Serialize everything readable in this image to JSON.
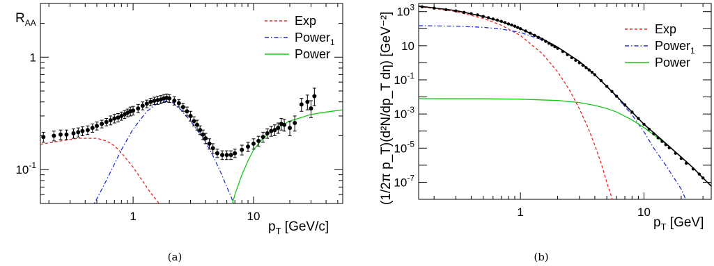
{
  "chart_data": [
    {
      "id": "a",
      "type": "line",
      "caption": "(a)",
      "xlabel": {
        "main": "p",
        "sub": "T",
        "rest": " [GeV/c]"
      },
      "ylabel": {
        "main": "R",
        "sub": "AA"
      },
      "xscale": "log",
      "yscale": "log",
      "xlim": [
        0.17,
        55
      ],
      "ylim": [
        0.05,
        3
      ],
      "x_tick_labels": [
        {
          "value": 1,
          "label": "1"
        },
        {
          "value": 10,
          "label": "10"
        }
      ],
      "y_tick_labels": [
        {
          "value": 0.1,
          "base": "10",
          "exp": "-1"
        },
        {
          "value": 1,
          "base": "1",
          "exp": ""
        }
      ],
      "legend_position": "top-right",
      "legend": [
        {
          "name": "Exp",
          "sub": "",
          "color": "#e8221d",
          "dash": "4 3"
        },
        {
          "name": "Power",
          "sub": "1",
          "color": "#1f2fd6",
          "dash": "6 3 1.5 3"
        },
        {
          "name": "Power",
          "sub": "",
          "color": "#18c618",
          "dash": ""
        }
      ],
      "series": [
        {
          "name": "Exp",
          "color": "#e8221d",
          "x": [
            0.17,
            0.25,
            0.35,
            0.5,
            0.6,
            0.7,
            0.8,
            1.0,
            1.2,
            1.4,
            1.6,
            1.7
          ],
          "y": [
            0.168,
            0.18,
            0.19,
            0.19,
            0.18,
            0.163,
            0.141,
            0.105,
            0.079,
            0.062,
            0.052,
            0.047
          ]
        },
        {
          "name": "Power_1",
          "color": "#1f2fd6",
          "x": [
            0.45,
            0.5,
            0.6,
            0.8,
            1.0,
            1.3,
            1.6,
            1.9,
            2.1,
            2.5,
            3.0,
            3.5,
            4.0,
            4.5,
            5.0,
            5.5,
            6.0,
            6.5,
            7.0
          ],
          "y": [
            0.045,
            0.055,
            0.08,
            0.15,
            0.23,
            0.33,
            0.39,
            0.41,
            0.4,
            0.34,
            0.27,
            0.215,
            0.175,
            0.14,
            0.11,
            0.088,
            0.07,
            0.058,
            0.046
          ]
        },
        {
          "name": "Power",
          "color": "#18c618",
          "x": [
            6.5,
            7.0,
            8.0,
            9.0,
            10,
            12,
            15,
            20,
            30,
            40,
            55
          ],
          "y": [
            0.045,
            0.06,
            0.09,
            0.12,
            0.15,
            0.19,
            0.23,
            0.27,
            0.31,
            0.325,
            0.34
          ]
        }
      ],
      "points": {
        "x": [
          0.18,
          0.22,
          0.25,
          0.28,
          0.32,
          0.35,
          0.38,
          0.42,
          0.46,
          0.5,
          0.55,
          0.6,
          0.65,
          0.7,
          0.75,
          0.8,
          0.85,
          0.9,
          0.95,
          1.0,
          1.1,
          1.2,
          1.3,
          1.4,
          1.5,
          1.6,
          1.7,
          1.8,
          1.9,
          2.0,
          2.2,
          2.4,
          2.6,
          2.8,
          3.0,
          3.2,
          3.4,
          3.6,
          3.8,
          4.0,
          4.3,
          4.6,
          5.0,
          5.5,
          6.0,
          6.5,
          7.0,
          8.0,
          9.0,
          10,
          11,
          12,
          13,
          14,
          15,
          16,
          17,
          18,
          20,
          22,
          25,
          28,
          30,
          32
        ],
        "y": [
          0.195,
          0.2,
          0.205,
          0.205,
          0.21,
          0.215,
          0.22,
          0.225,
          0.235,
          0.245,
          0.255,
          0.265,
          0.275,
          0.285,
          0.29,
          0.3,
          0.31,
          0.32,
          0.33,
          0.335,
          0.35,
          0.37,
          0.385,
          0.4,
          0.41,
          0.415,
          0.42,
          0.43,
          0.435,
          0.43,
          0.41,
          0.39,
          0.36,
          0.33,
          0.3,
          0.27,
          0.25,
          0.225,
          0.205,
          0.19,
          0.17,
          0.155,
          0.14,
          0.135,
          0.135,
          0.135,
          0.14,
          0.15,
          0.16,
          0.17,
          0.18,
          0.195,
          0.21,
          0.22,
          0.225,
          0.235,
          0.255,
          0.25,
          0.235,
          0.26,
          0.38,
          0.4,
          0.35,
          0.45
        ],
        "err": [
          0.02,
          0.02,
          0.02,
          0.02,
          0.02,
          0.02,
          0.02,
          0.02,
          0.02,
          0.02,
          0.02,
          0.02,
          0.025,
          0.025,
          0.025,
          0.025,
          0.025,
          0.025,
          0.03,
          0.03,
          0.03,
          0.03,
          0.03,
          0.03,
          0.03,
          0.035,
          0.035,
          0.035,
          0.035,
          0.035,
          0.035,
          0.03,
          0.03,
          0.03,
          0.03,
          0.025,
          0.025,
          0.02,
          0.02,
          0.02,
          0.018,
          0.015,
          0.012,
          0.012,
          0.012,
          0.012,
          0.012,
          0.015,
          0.015,
          0.018,
          0.018,
          0.02,
          0.02,
          0.022,
          0.025,
          0.025,
          0.03,
          0.03,
          0.035,
          0.04,
          0.05,
          0.06,
          0.06,
          0.08
        ]
      }
    },
    {
      "id": "b",
      "type": "line",
      "caption": "(b)",
      "xlabel": {
        "main": "p",
        "sub": "T",
        "rest": " [GeV]"
      },
      "ylabel": {
        "text": "(1/2π p_T)(d²N/dp_T dη) [GeV⁻²]"
      },
      "xscale": "log",
      "yscale": "log",
      "xlim": [
        0.15,
        35
      ],
      "ylim": [
        1e-08,
        3000
      ],
      "x_tick_labels": [
        {
          "value": 1,
          "label": "1"
        },
        {
          "value": 10,
          "label": "10"
        }
      ],
      "y_tick_labels": [
        {
          "value": 1000,
          "base": "10",
          "exp": "3"
        },
        {
          "value": 10,
          "base": "10",
          "exp": ""
        },
        {
          "value": 0.1,
          "base": "10",
          "exp": "-1"
        },
        {
          "value": 0.001,
          "base": "10",
          "exp": "-3"
        },
        {
          "value": 1e-05,
          "base": "10",
          "exp": "-5"
        },
        {
          "value": 1e-07,
          "base": "10",
          "exp": "-7"
        }
      ],
      "legend_position": "top-right",
      "legend": [
        {
          "name": "Exp",
          "sub": "",
          "color": "#e8221d",
          "dash": "4 3"
        },
        {
          "name": "Power",
          "sub": "1",
          "color": "#1f2fd6",
          "dash": "6 3 1.5 3"
        },
        {
          "name": "Power",
          "sub": "",
          "color": "#18c618",
          "dash": ""
        }
      ],
      "series": [
        {
          "name": "Exp",
          "color": "#e8221d",
          "x": [
            0.15,
            0.3,
            0.5,
            0.7,
            1.0,
            1.5,
            2.0,
            2.5,
            3.0,
            3.5,
            4.0,
            4.5,
            5.0,
            5.5,
            6.0
          ],
          "y": [
            2000,
            1000,
            400,
            160,
            40,
            3.5,
            0.3,
            0.025,
            0.002,
            0.00018,
            1.5e-05,
            1.3e-06,
            1e-07,
            1.2e-08,
            1e-09
          ]
        },
        {
          "name": "Power_1",
          "color": "#1f2fd6",
          "x": [
            0.15,
            0.3,
            0.5,
            0.7,
            1.0,
            1.5,
            2.0,
            3.0,
            4.0,
            5.0,
            6.0,
            8.0,
            10,
            12,
            15,
            20,
            25
          ],
          "y": [
            150,
            140,
            120,
            95,
            60,
            22,
            8,
            1.2,
            0.2,
            0.04,
            0.01,
            0.0009,
            9e-05,
            1e-05,
            1e-06,
            4e-08,
            1e-09
          ]
        },
        {
          "name": "Power",
          "color": "#18c618",
          "x": [
            0.15,
            0.5,
            1.0,
            2.0,
            3.0,
            4.0,
            5.0,
            6.0,
            8.0,
            10,
            15,
            20,
            25,
            30,
            35
          ],
          "y": [
            0.008,
            0.0078,
            0.0074,
            0.0062,
            0.0047,
            0.0032,
            0.0021,
            0.0013,
            0.00045,
            0.00016,
            1.8e-05,
            3e-06,
            7e-07,
            1.8e-07,
            6e-08
          ]
        }
      ],
      "total_curve": {
        "x": [
          0.15,
          0.3,
          0.5,
          0.7,
          1.0,
          1.5,
          2.0,
          3.0,
          4.0,
          5.0,
          6.0,
          8.0,
          10,
          15,
          20,
          25,
          30,
          35
        ],
        "y": [
          2100,
          1150,
          520,
          260,
          100,
          25.5,
          8.3,
          1.2,
          0.2,
          0.042,
          0.011,
          0.0013,
          0.00025,
          1.9e-05,
          3e-06,
          7e-07,
          1.8e-07,
          6e-08
        ]
      },
      "points": {
        "x": [
          0.16,
          0.2,
          0.25,
          0.3,
          0.35,
          0.4,
          0.45,
          0.5,
          0.55,
          0.6,
          0.65,
          0.7,
          0.75,
          0.8,
          0.85,
          0.9,
          0.95,
          1.0,
          1.1,
          1.2,
          1.3,
          1.4,
          1.5,
          1.6,
          1.7,
          1.8,
          1.9,
          2.0,
          2.2,
          2.4,
          2.6,
          2.8,
          3.0,
          3.2,
          3.4,
          3.6,
          3.8,
          4.0,
          4.5,
          5.0,
          5.5,
          6.0,
          7.0,
          8.0,
          9.0,
          10,
          11,
          12,
          13,
          14,
          15,
          16,
          18,
          20,
          22,
          25,
          28,
          30
        ],
        "y": [
          1900,
          1600,
          1300,
          1100,
          900,
          760,
          640,
          520,
          440,
          370,
          320,
          270,
          230,
          190,
          165,
          140,
          118,
          100,
          74,
          55,
          41,
          31,
          24,
          18,
          14,
          11,
          8.8,
          7,
          4.6,
          3.0,
          2.0,
          1.4,
          1.0,
          0.72,
          0.52,
          0.38,
          0.28,
          0.2,
          0.09,
          0.042,
          0.021,
          0.011,
          0.0035,
          0.0013,
          0.00055,
          0.00025,
          0.00013,
          7e-05,
          4e-05,
          2.5e-05,
          1.6e-05,
          1.05e-05,
          5e-06,
          2.5e-06,
          1.3e-06,
          6e-07,
          3e-07,
          1.8e-07
        ]
      }
    }
  ]
}
